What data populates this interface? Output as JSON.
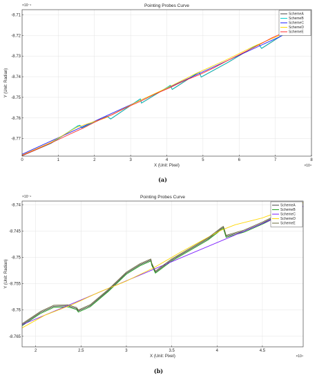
{
  "chart_data": [
    {
      "type": "line",
      "title": "Pointing Probes Curve",
      "xlabel": "X (Unit: Pixel)",
      "ylabel": "Y (Unit: Radian)",
      "x_exponent_label": "×10⁴",
      "y_exponent_label": "×10⁻⁴",
      "x_ticks": [
        "0",
        "1",
        "2",
        "3",
        "4",
        "5",
        "6",
        "7",
        "8"
      ],
      "y_ticks": [
        "-8.71",
        "-8.72",
        "-8.73",
        "-8.74",
        "-8.75",
        "-8.76",
        "-8.77"
      ],
      "xlim": [
        0,
        8
      ],
      "ylim": [
        -8.7785,
        -8.7075
      ],
      "grid": true,
      "legend_position": "top-right",
      "caption": "(a)",
      "series": [
        {
          "name": "SchemeA",
          "color": "#404040",
          "x": [
            0,
            0.8,
            1.55,
            1.6,
            1.65,
            2.35,
            2.45,
            3.25,
            3.27,
            3.3,
            4.05,
            4.1,
            4.15,
            4.87,
            4.9,
            4.95,
            5.7,
            6.5,
            6.55,
            6.62,
            7.25
          ],
          "y": [
            -8.7783,
            -8.7723,
            -8.7638,
            -8.7636,
            -8.7648,
            -8.7593,
            -8.7605,
            -8.751,
            -8.7508,
            -8.7528,
            -8.7448,
            -8.7442,
            -8.7462,
            -8.738,
            -8.7378,
            -8.7402,
            -8.733,
            -8.7246,
            -8.7244,
            -8.7263,
            -8.7192
          ]
        },
        {
          "name": "SchemeB",
          "color": "#00cccc",
          "x": [
            0,
            0.8,
            1.55,
            1.6,
            1.65,
            2.35,
            2.45,
            3.25,
            3.27,
            3.3,
            4.05,
            4.1,
            4.15,
            4.87,
            4.9,
            4.95,
            5.7,
            6.5,
            6.55,
            6.62,
            7.25
          ],
          "y": [
            -8.7782,
            -8.7722,
            -8.7637,
            -8.7635,
            -8.7647,
            -8.7592,
            -8.7604,
            -8.7509,
            -8.7507,
            -8.7527,
            -8.7447,
            -8.7441,
            -8.7461,
            -8.7379,
            -8.7377,
            -8.7401,
            -8.7329,
            -8.7245,
            -8.7243,
            -8.7262,
            -8.7191
          ]
        },
        {
          "name": "SchemeC",
          "color": "#1a1aff",
          "x": [
            0,
            7.25
          ],
          "y": [
            -8.7776,
            -8.7196
          ]
        },
        {
          "name": "SchemeD",
          "color": "#ffd700",
          "x": [
            0,
            0.8,
            1.5,
            2.3,
            3.2,
            4.0,
            4.8,
            5.6,
            6.4,
            7.25
          ],
          "y": [
            -8.778,
            -8.7718,
            -8.7646,
            -8.76,
            -8.752,
            -8.7455,
            -8.7385,
            -8.7322,
            -8.7253,
            -8.719
          ]
        },
        {
          "name": "SchemeE",
          "color": "#ff2a2a",
          "x": [
            0,
            0.4,
            0.9,
            1.3,
            1.7,
            2.1,
            2.5,
            2.9,
            3.3,
            3.7,
            4.1,
            4.5,
            4.9,
            5.3,
            5.7,
            6.1,
            6.5,
            6.9,
            7.25
          ],
          "y": [
            -8.7782,
            -8.7752,
            -8.7713,
            -8.768,
            -8.7648,
            -8.7612,
            -8.7583,
            -8.7548,
            -8.7517,
            -8.7482,
            -8.7452,
            -8.7418,
            -8.739,
            -8.7357,
            -8.732,
            -8.7285,
            -8.725,
            -8.7212,
            -8.7185
          ]
        }
      ]
    },
    {
      "type": "line",
      "title": "Pointing Probes Curve",
      "xlabel": "X (Unit: Pixel)",
      "ylabel": "Y (Unit: Radian)",
      "x_exponent_label": "×10⁴",
      "y_exponent_label": "×10⁻⁴",
      "x_ticks": [
        "2",
        "2.5",
        "3",
        "3.5",
        "4",
        "4.5"
      ],
      "y_ticks": [
        "-8.74",
        "-8.745",
        "-8.75",
        "-8.755",
        "-8.76",
        "-8.765"
      ],
      "xlim": [
        1.85,
        4.95
      ],
      "ylim": [
        -8.767,
        -8.7393
      ],
      "grid": true,
      "legend_position": "top-right",
      "caption": "(b)",
      "series": [
        {
          "name": "SchemeA",
          "color": "#404040",
          "x": [
            1.85,
            2.05,
            2.2,
            2.35,
            2.45,
            2.47,
            2.6,
            2.8,
            3.0,
            3.15,
            3.27,
            3.28,
            3.32,
            3.5,
            3.7,
            3.9,
            4.05,
            4.07,
            4.1,
            4.3,
            4.5,
            4.7,
            4.9
          ],
          "y": [
            -8.7628,
            -8.7605,
            -8.7593,
            -8.7592,
            -8.7597,
            -8.7602,
            -8.7592,
            -8.7563,
            -8.753,
            -8.7514,
            -8.7505,
            -8.7513,
            -8.7528,
            -8.7505,
            -8.7485,
            -8.7465,
            -8.7445,
            -8.7443,
            -8.746,
            -8.745,
            -8.7435,
            -8.7418,
            -8.7398
          ]
        },
        {
          "name": "SchemeB",
          "color": "#1a9e1a",
          "x": [
            1.85,
            2.05,
            2.2,
            2.35,
            2.45,
            2.47,
            2.6,
            2.8,
            3.0,
            3.15,
            3.27,
            3.28,
            3.32,
            3.5,
            3.7,
            3.9,
            4.05,
            4.07,
            4.1,
            4.3,
            4.5,
            4.7,
            4.9
          ],
          "y": [
            -8.763,
            -8.7607,
            -8.7595,
            -8.7594,
            -8.7599,
            -8.7604,
            -8.7594,
            -8.7565,
            -8.7532,
            -8.7516,
            -8.7507,
            -8.7515,
            -8.753,
            -8.7507,
            -8.7487,
            -8.7467,
            -8.7447,
            -8.7445,
            -8.7462,
            -8.7452,
            -8.7437,
            -8.742,
            -8.74
          ]
        },
        {
          "name": "SchemeC",
          "color": "#7a1aff",
          "x": [
            1.85,
            4.95
          ],
          "y": [
            -8.7628,
            -8.7403
          ]
        },
        {
          "name": "SchemeD",
          "color": "#ffd700",
          "x": [
            1.85,
            2.1,
            2.4,
            2.7,
            3.0,
            3.3,
            3.6,
            3.9,
            4.05,
            4.2,
            4.5,
            4.8,
            4.95
          ],
          "y": [
            -8.7634,
            -8.761,
            -8.759,
            -8.7566,
            -8.7545,
            -8.752,
            -8.749,
            -8.7462,
            -8.7448,
            -8.7438,
            -8.7425,
            -8.7406,
            -8.7396
          ]
        },
        {
          "name": "SchemeE",
          "color": "#6b6b3d",
          "x": [
            1.85,
            2.05,
            2.2,
            2.35,
            2.45,
            2.47,
            2.6,
            2.8,
            3.0,
            3.15,
            3.27,
            3.28,
            3.32,
            3.5,
            3.7,
            3.9,
            4.05,
            4.07,
            4.1,
            4.3,
            4.5,
            4.7,
            4.9
          ],
          "y": [
            -8.7626,
            -8.7603,
            -8.7591,
            -8.759,
            -8.7595,
            -8.76,
            -8.759,
            -8.7561,
            -8.7528,
            -8.7512,
            -8.7503,
            -8.7511,
            -8.7526,
            -8.7503,
            -8.7483,
            -8.7463,
            -8.7443,
            -8.7441,
            -8.7458,
            -8.7448,
            -8.7433,
            -8.7416,
            -8.7396
          ]
        }
      ]
    }
  ]
}
